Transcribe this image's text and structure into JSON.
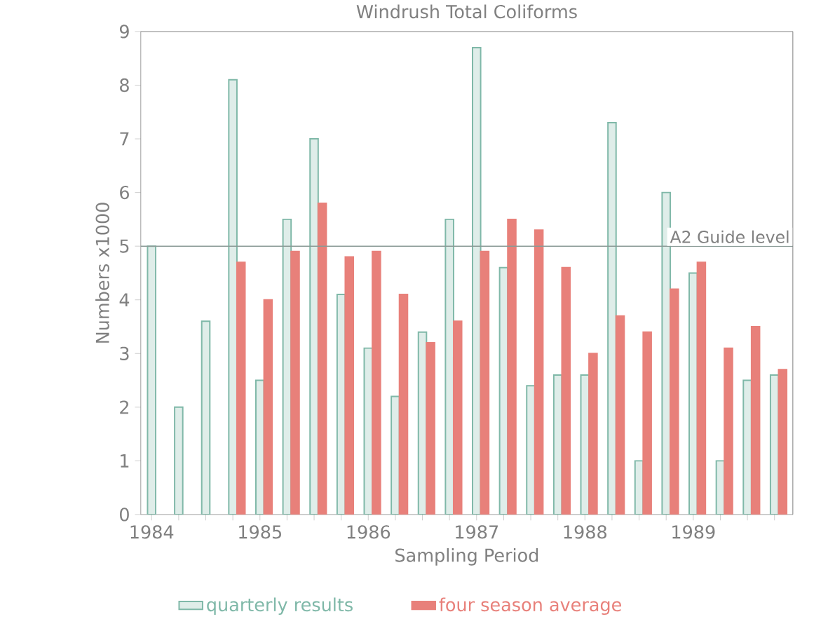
{
  "chart_data": {
    "type": "bar",
    "title": "Windrush Total Coliforms",
    "xlabel": "Sampling Period",
    "ylabel": "Numbers x1000",
    "x": [
      1984,
      1984.25,
      1984.5,
      1984.75,
      1985,
      1985.25,
      1985.5,
      1985.75,
      1986,
      1986.25,
      1986.5,
      1986.75,
      1987,
      1987.25,
      1987.5,
      1987.75,
      1988,
      1988.25,
      1988.5,
      1988.75,
      1989,
      1989.25,
      1989.5,
      1989.75
    ],
    "series": [
      {
        "name": "quarterly results",
        "color": "#7fb8a8",
        "values": [
          5.0,
          2.0,
          3.6,
          8.1,
          2.5,
          5.5,
          7.0,
          4.1,
          3.1,
          2.2,
          3.4,
          5.5,
          8.7,
          4.6,
          2.4,
          2.6,
          2.6,
          7.3,
          1.0,
          6.0,
          4.5,
          1.0,
          2.5,
          2.6
        ]
      },
      {
        "name": "four season average",
        "color": "#e8807a",
        "values": [
          null,
          null,
          null,
          4.7,
          4.0,
          4.9,
          5.8,
          4.8,
          4.9,
          4.1,
          3.2,
          3.6,
          4.9,
          5.5,
          5.3,
          4.6,
          3.0,
          3.7,
          3.4,
          4.2,
          4.7,
          3.1,
          3.5,
          2.7
        ]
      }
    ],
    "xlim": [
      1983.9,
      1989.92
    ],
    "ylim": [
      0,
      9
    ],
    "xticks": [
      {
        "value": 1984,
        "label": "1984"
      },
      {
        "value": 1984.25,
        "label": null
      },
      {
        "value": 1984.5,
        "label": null
      },
      {
        "value": 1984.75,
        "label": null
      },
      {
        "value": 1985,
        "label": "1985"
      },
      {
        "value": 1985.25,
        "label": null
      },
      {
        "value": 1985.5,
        "label": null
      },
      {
        "value": 1985.75,
        "label": null
      },
      {
        "value": 1986,
        "label": "1986"
      },
      {
        "value": 1986.25,
        "label": null
      },
      {
        "value": 1986.5,
        "label": null
      },
      {
        "value": 1986.75,
        "label": null
      },
      {
        "value": 1987,
        "label": "1987"
      },
      {
        "value": 1987.25,
        "label": null
      },
      {
        "value": 1987.5,
        "label": null
      },
      {
        "value": 1987.75,
        "label": null
      },
      {
        "value": 1988,
        "label": "1988"
      },
      {
        "value": 1988.25,
        "label": null
      },
      {
        "value": 1988.5,
        "label": null
      },
      {
        "value": 1988.75,
        "label": null
      },
      {
        "value": 1989,
        "label": "1989"
      },
      {
        "value": 1989.25,
        "label": null
      },
      {
        "value": 1989.5,
        "label": null
      },
      {
        "value": 1989.75,
        "label": null
      }
    ],
    "yticks": [
      0,
      1,
      2,
      3,
      4,
      5,
      6,
      7,
      8,
      9
    ],
    "ref_lines": [
      {
        "axis": "y",
        "value": 5,
        "label": "A2 Guide level",
        "color": "#8a9a96"
      }
    ],
    "legend": "bottom",
    "grid": false
  }
}
